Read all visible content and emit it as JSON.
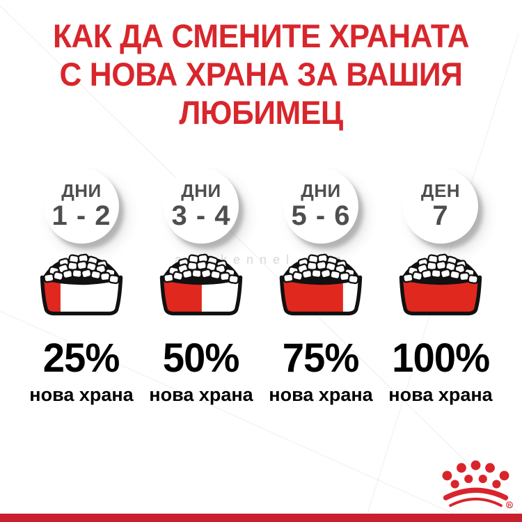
{
  "title": {
    "line1": "КАК ДА СМЕНИТЕ ХРАНАТА",
    "line2": "С НОВА ХРАНА ЗА ВАШИЯ",
    "line3": "ЛЮБИМЕЦ"
  },
  "columns": [
    {
      "period_label": "ДНИ",
      "period_value": "1 - 2",
      "new_food_percent": 25,
      "percent_label": "25%",
      "caption": "нова храна"
    },
    {
      "period_label": "ДНИ",
      "period_value": "3 - 4",
      "new_food_percent": 50,
      "percent_label": "50%",
      "caption": "нова храна"
    },
    {
      "period_label": "ДНИ",
      "period_value": "5 - 6",
      "new_food_percent": 75,
      "percent_label": "75%",
      "caption": "нова храна"
    },
    {
      "period_label": "ДЕН",
      "period_value": "7",
      "new_food_percent": 100,
      "percent_label": "100%",
      "caption": "нова храна"
    }
  ],
  "watermark_text": "ariakennel.com",
  "footer": {
    "brand_logo": "royal-canin-crown",
    "registered_mark": "®"
  },
  "colors": {
    "accent_red": "#d8262c",
    "bowl_red": "#e1281f",
    "bottom_bar_red": "#c9202e",
    "logo_red": "#d8252b",
    "circle_text_gray": "#4e4e4e",
    "watermark_gray": "#d2d2d2"
  }
}
